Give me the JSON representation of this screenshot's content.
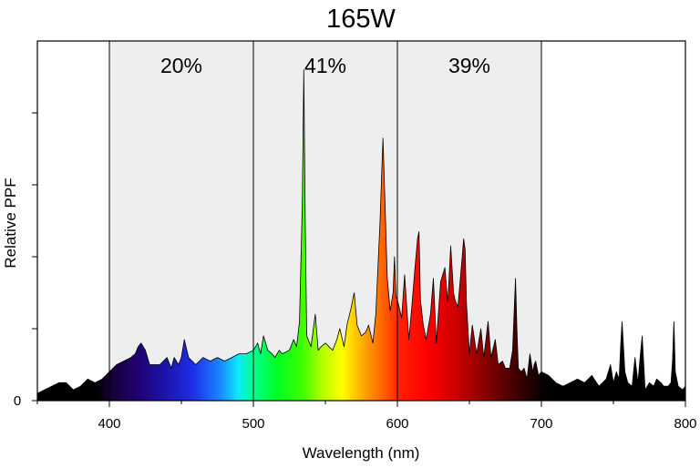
{
  "chart_data": {
    "type": "area",
    "title": "165W",
    "xlabel": "Wavelength (nm)",
    "ylabel": "Relative PPF",
    "xlim": [
      350,
      800
    ],
    "ylim": [
      0,
      1.0
    ],
    "x_ticks": [
      400,
      500,
      600,
      700,
      800
    ],
    "x_tick_labels": [
      "400",
      "500",
      "600",
      "700",
      "800"
    ],
    "y_ticks": [
      0,
      0.2,
      0.4,
      0.6,
      0.8
    ],
    "y_tick_labels": [
      "0",
      "",
      "",
      "",
      ""
    ],
    "regions": [
      {
        "from": 400,
        "to": 500,
        "label": "20%"
      },
      {
        "from": 500,
        "to": 600,
        "label": "41%"
      },
      {
        "from": 600,
        "to": 700,
        "label": "39%"
      }
    ],
    "region_shade_color": "#eeeeee",
    "series": [
      {
        "x": [
          350,
          355,
          360,
          365,
          370,
          375,
          380,
          385,
          390,
          395,
          400,
          405,
          410,
          415,
          418,
          420,
          422,
          425,
          428,
          430,
          435,
          440,
          443,
          445,
          448,
          450,
          452,
          455,
          460,
          465,
          470,
          475,
          480,
          485,
          490,
          495,
          500,
          503,
          505,
          507,
          510,
          513,
          515,
          518,
          520,
          525,
          528,
          530,
          532,
          534,
          535,
          536,
          537,
          540,
          543,
          545,
          547,
          550,
          555,
          558,
          560,
          563,
          565,
          568,
          570,
          572,
          575,
          578,
          580,
          583,
          585,
          588,
          589,
          590,
          591,
          593,
          595,
          597,
          598,
          599,
          600,
          603,
          605,
          608,
          610,
          612,
          614,
          615,
          616,
          618,
          620,
          623,
          625,
          627,
          630,
          633,
          635,
          637,
          639,
          640,
          642,
          645,
          646,
          647,
          648,
          650,
          652,
          655,
          658,
          660,
          663,
          665,
          668,
          670,
          673,
          675,
          678,
          680,
          682,
          683,
          684,
          686,
          688,
          690,
          692,
          694,
          695,
          696,
          698,
          700,
          705,
          710,
          715,
          720,
          725,
          730,
          735,
          740,
          745,
          748,
          750,
          752,
          754,
          755,
          756,
          758,
          760,
          763,
          765,
          767,
          769,
          770,
          772,
          775,
          778,
          780,
          783,
          785,
          788,
          790,
          791,
          792,
          793,
          795,
          798,
          800
        ],
        "y": [
          0.02,
          0.03,
          0.04,
          0.05,
          0.05,
          0.03,
          0.04,
          0.06,
          0.05,
          0.06,
          0.08,
          0.1,
          0.11,
          0.12,
          0.13,
          0.15,
          0.16,
          0.14,
          0.1,
          0.1,
          0.1,
          0.12,
          0.09,
          0.12,
          0.1,
          0.12,
          0.17,
          0.12,
          0.1,
          0.12,
          0.11,
          0.12,
          0.11,
          0.12,
          0.13,
          0.13,
          0.14,
          0.16,
          0.13,
          0.18,
          0.14,
          0.13,
          0.12,
          0.14,
          0.13,
          0.14,
          0.17,
          0.15,
          0.22,
          0.55,
          0.92,
          0.5,
          0.18,
          0.15,
          0.24,
          0.14,
          0.15,
          0.16,
          0.14,
          0.17,
          0.2,
          0.15,
          0.21,
          0.26,
          0.3,
          0.21,
          0.18,
          0.19,
          0.21,
          0.16,
          0.24,
          0.5,
          0.62,
          0.73,
          0.6,
          0.34,
          0.25,
          0.3,
          0.4,
          0.29,
          0.28,
          0.23,
          0.35,
          0.17,
          0.26,
          0.36,
          0.45,
          0.47,
          0.28,
          0.21,
          0.17,
          0.24,
          0.34,
          0.16,
          0.33,
          0.37,
          0.27,
          0.43,
          0.3,
          0.28,
          0.26,
          0.4,
          0.45,
          0.42,
          0.27,
          0.13,
          0.21,
          0.13,
          0.2,
          0.12,
          0.22,
          0.12,
          0.17,
          0.1,
          0.11,
          0.09,
          0.09,
          0.14,
          0.34,
          0.2,
          0.09,
          0.08,
          0.09,
          0.06,
          0.13,
          0.08,
          0.1,
          0.11,
          0.07,
          0.08,
          0.07,
          0.05,
          0.04,
          0.05,
          0.06,
          0.05,
          0.07,
          0.04,
          0.06,
          0.1,
          0.05,
          0.08,
          0.06,
          0.15,
          0.22,
          0.08,
          0.05,
          0.04,
          0.12,
          0.05,
          0.14,
          0.18,
          0.03,
          0.05,
          0.04,
          0.06,
          0.05,
          0.04,
          0.04,
          0.05,
          0.11,
          0.22,
          0.08,
          0.04,
          0.03,
          0.04
        ]
      }
    ],
    "grid": false,
    "legend": "none"
  }
}
